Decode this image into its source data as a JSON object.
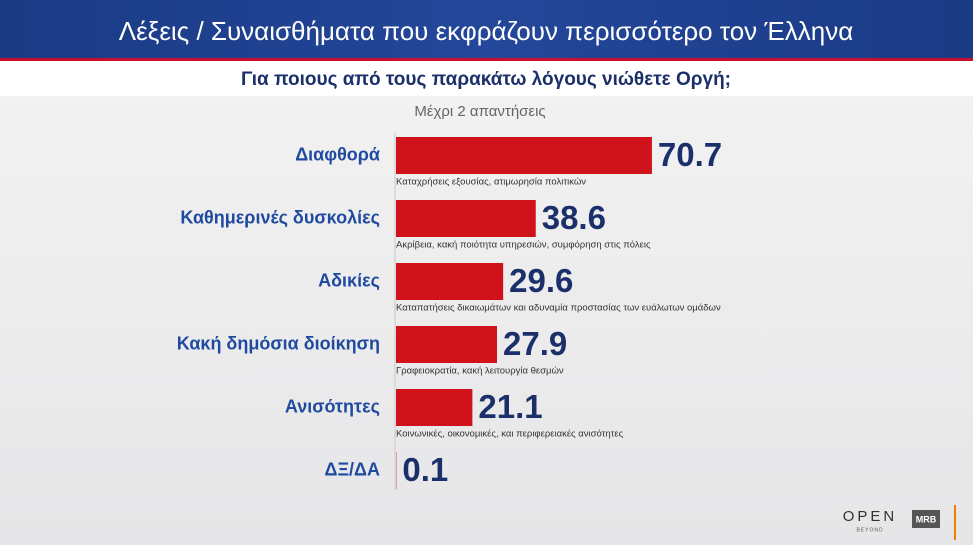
{
  "chart_data": {
    "type": "bar",
    "orientation": "horizontal",
    "title": "Λέξεις / Συναισθήματα που εκφράζουν περισσότερο τον Έλληνα",
    "subtitle": "Για ποιους από τους παρακάτω λόγους νιώθετε Οργή;",
    "note": "Μέχρι 2 απαντήσεις",
    "categories": [
      "Διαφθορά",
      "Καθημερινές δυσκολίες",
      "Αδικίες",
      "Κακή δημόσια διοίκηση",
      "Ανισότητες",
      "ΔΞ/ΔΑ"
    ],
    "descriptions": [
      "Καταχρήσεις εξουσίας, ατιμωρησία πολιτικών",
      "Ακρίβεια, κακή ποιότητα υπηρεσιών, συμφόρηση στις πόλεις",
      "Καταπατήσεις δικαιωμάτων και αδυναμία προστασίας των ευάλωτων ομάδων",
      "Γραφειοκρατία, κακή λειτουργία θεσμών",
      "Κοινωνικές, οικονομικές, και περιφερειακές ανισότητες",
      null
    ],
    "values": [
      70.7,
      38.6,
      29.6,
      27.9,
      21.1,
      0.1
    ],
    "color": "#d0121b"
  },
  "logos": {
    "channel": "OPEN",
    "channel_tagline": "BEYOND",
    "pollster": "MRB"
  }
}
